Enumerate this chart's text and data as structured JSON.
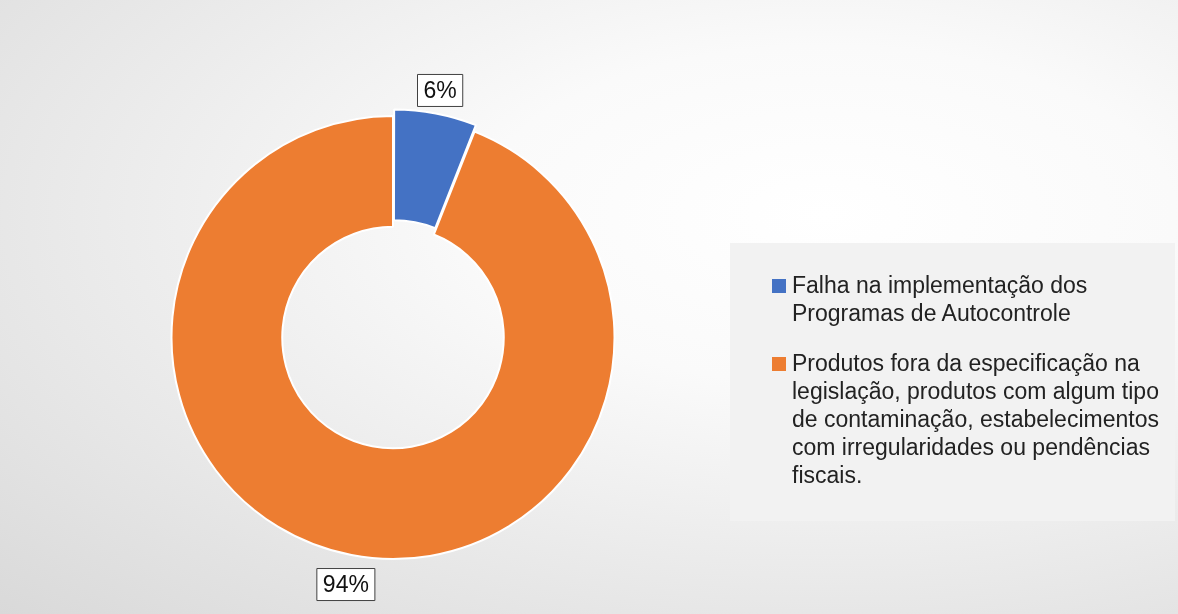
{
  "chart_data": {
    "type": "donut",
    "categories": [
      "Falha na implementação dos Programas de Autocontrole",
      "Produtos fora da especificação na legislação, produtos com algum tipo de contaminação, estabelecimentos com irregularidades ou pendências fiscais."
    ],
    "values": [
      6,
      94
    ],
    "colors": [
      "#4472c4",
      "#ed7d31"
    ],
    "value_labels": [
      "6%",
      "94%"
    ],
    "legend": "right"
  }
}
